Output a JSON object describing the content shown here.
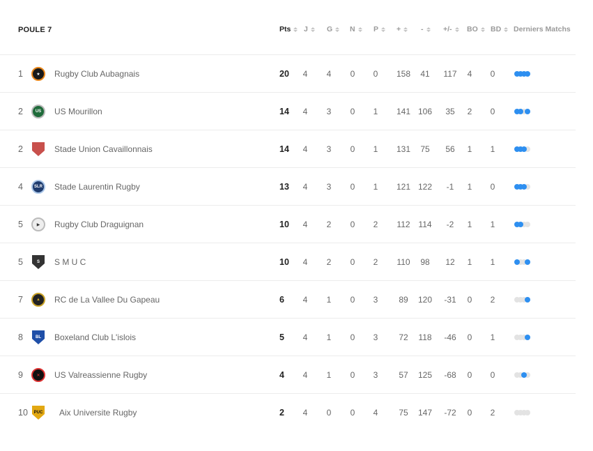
{
  "pool_title": "POULE 7",
  "columns": {
    "pts": "Pts",
    "j": "J",
    "g": "G",
    "n": "N",
    "p": "P",
    "plus": "+",
    "minus": "-",
    "diff": "+/-",
    "bo": "BO",
    "bd": "BD",
    "last": "Derniers Matchs"
  },
  "colors": {
    "win_dot": "#2e8ff0",
    "empty_dot": "#e3e3e3",
    "active_header": "#222222"
  },
  "rows": [
    {
      "rank": "1",
      "name": "Rugby Club Aubagnais",
      "pts": "20",
      "j": "4",
      "g": "4",
      "n": "0",
      "p": "0",
      "plus": "158",
      "minus": "41",
      "diff": "117",
      "bo": "4",
      "bd": "0",
      "logo": "aubagne-bee-logo",
      "form": [
        "w",
        "w",
        "w",
        "w"
      ]
    },
    {
      "rank": "2",
      "name": "US Mourillon",
      "pts": "14",
      "j": "4",
      "g": "3",
      "n": "0",
      "p": "1",
      "plus": "141",
      "minus": "106",
      "diff": "35",
      "bo": "2",
      "bd": "0",
      "logo": "mourillon-shield-logo",
      "form": [
        "w",
        "w",
        "l",
        "w"
      ]
    },
    {
      "rank": "2",
      "name": "Stade Union Cavaillonnais",
      "pts": "14",
      "j": "4",
      "g": "3",
      "n": "0",
      "p": "1",
      "plus": "131",
      "minus": "75",
      "diff": "56",
      "bo": "1",
      "bd": "1",
      "logo": "cavaillon-shield-logo",
      "form": [
        "w",
        "w",
        "w",
        "l"
      ]
    },
    {
      "rank": "4",
      "name": "Stade Laurentin Rugby",
      "pts": "13",
      "j": "4",
      "g": "3",
      "n": "0",
      "p": "1",
      "plus": "121",
      "minus": "122",
      "diff": "-1",
      "bo": "1",
      "bd": "0",
      "logo": "slr-logo",
      "form": [
        "w",
        "w",
        "w",
        "l"
      ]
    },
    {
      "rank": "5",
      "name": "Rugby Club Draguignan",
      "pts": "10",
      "j": "4",
      "g": "2",
      "n": "0",
      "p": "2",
      "plus": "112",
      "minus": "114",
      "diff": "-2",
      "bo": "1",
      "bd": "1",
      "logo": "draguignan-logo",
      "form": [
        "w",
        "w",
        "l",
        "l"
      ]
    },
    {
      "rank": "5",
      "name": "S M U C",
      "pts": "10",
      "j": "4",
      "g": "2",
      "n": "0",
      "p": "2",
      "plus": "110",
      "minus": "98",
      "diff": "12",
      "bo": "1",
      "bd": "1",
      "logo": "smuc-logo",
      "form": [
        "w",
        "l",
        "l",
        "w"
      ]
    },
    {
      "rank": "7",
      "name": "RC de La Vallee Du Gapeau",
      "pts": "6",
      "j": "4",
      "g": "1",
      "n": "0",
      "p": "3",
      "plus": "89",
      "minus": "120",
      "diff": "-31",
      "bo": "0",
      "bd": "2",
      "logo": "gapeau-logo",
      "form": [
        "l",
        "l",
        "l",
        "w"
      ]
    },
    {
      "rank": "8",
      "name": "Boxeland Club L'islois",
      "pts": "5",
      "j": "4",
      "g": "1",
      "n": "0",
      "p": "3",
      "plus": "72",
      "minus": "118",
      "diff": "-46",
      "bo": "0",
      "bd": "1",
      "logo": "boxeland-shield-logo",
      "form": [
        "l",
        "l",
        "l",
        "w"
      ]
    },
    {
      "rank": "9",
      "name": "US Valreassienne Rugby",
      "pts": "4",
      "j": "4",
      "g": "1",
      "n": "0",
      "p": "3",
      "plus": "57",
      "minus": "125",
      "diff": "-68",
      "bo": "0",
      "bd": "0",
      "logo": "valreas-logo",
      "form": [
        "l",
        "l",
        "w",
        "l"
      ]
    },
    {
      "rank": "10",
      "name": "Aix Universite Rugby",
      "pts": "2",
      "j": "4",
      "g": "0",
      "n": "0",
      "p": "4",
      "plus": "75",
      "minus": "147",
      "diff": "-72",
      "bo": "0",
      "bd": "2",
      "logo": "aix-puc-logo",
      "form": [
        "l",
        "l",
        "l",
        "l"
      ]
    }
  ]
}
